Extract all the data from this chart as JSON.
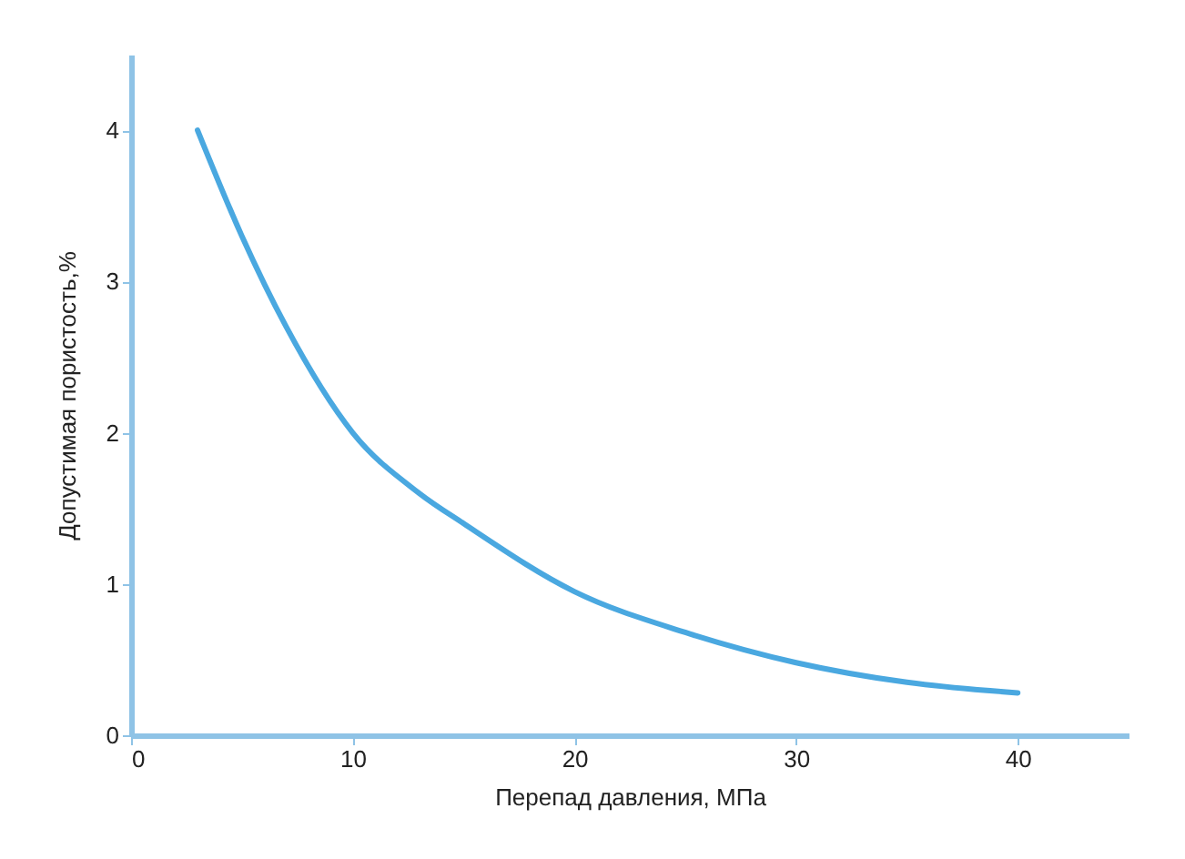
{
  "chart_data": {
    "type": "line",
    "xlabel": "Перепад давления, МПа",
    "ylabel": "Допустимая пористость,%",
    "x": [
      3,
      5,
      7,
      10,
      13,
      15,
      20,
      25,
      30,
      35,
      40
    ],
    "series": [
      {
        "color": "#4aa8e0",
        "values": [
          4.0,
          3.3,
          2.7,
          2.0,
          1.6,
          1.4,
          0.95,
          0.68,
          0.48,
          0.35,
          0.28
        ]
      }
    ],
    "xlim": [
      0,
      45
    ],
    "ylim": [
      0,
      4.5
    ],
    "xticks": [
      0,
      10,
      20,
      30,
      40
    ],
    "yticks": [
      0,
      1,
      2,
      3,
      4
    ],
    "grid": false,
    "legend": false,
    "marker": "none",
    "line_style": "solid"
  }
}
